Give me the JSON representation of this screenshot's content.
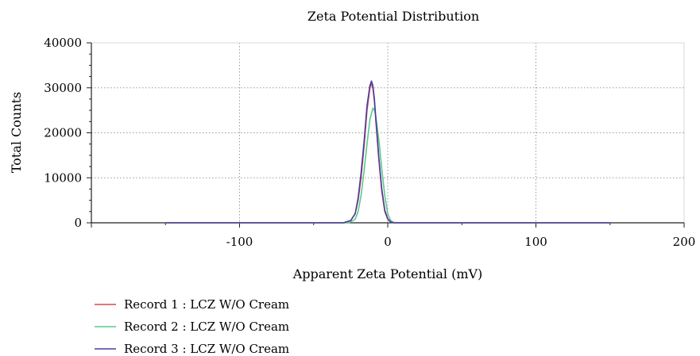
{
  "chart_data": {
    "type": "line",
    "title": "Zeta Potential Distribution",
    "xlabel": "Apparent Zeta Potential (mV)",
    "ylabel": "Total Counts",
    "xlim": [
      -200,
      200
    ],
    "ylim": [
      0,
      40000
    ],
    "xticks": [
      -100,
      0,
      100,
      200
    ],
    "xtick_labels": [
      "-100",
      "0",
      "100",
      "200"
    ],
    "yticks": [
      0,
      10000,
      20000,
      30000,
      40000
    ],
    "ytick_labels": [
      "0",
      "10000",
      "20000",
      "30000",
      "40000"
    ],
    "grid": true,
    "legend_position": "bottom-left",
    "series": [
      {
        "name": "Record 1 : LCZ W/O Cream",
        "color": "#d94a4a",
        "x": [
          -150,
          -30,
          -25,
          -22,
          -20,
          -18,
          -16,
          -14,
          -12,
          -11,
          -10,
          -9,
          -8,
          -6,
          -4,
          -2,
          0,
          2,
          4,
          150
        ],
        "y": [
          0,
          0,
          500,
          2000,
          5000,
          10000,
          17000,
          25000,
          30000,
          31000,
          30000,
          27000,
          22500,
          14000,
          7000,
          2500,
          800,
          200,
          0,
          0
        ]
      },
      {
        "name": "Record 2 : LCZ W/O Cream",
        "color": "#5cc98e",
        "x": [
          -150,
          -26,
          -22,
          -20,
          -18,
          -16,
          -14,
          -12,
          -10,
          -9,
          -8,
          -6,
          -4,
          -2,
          0,
          2,
          4,
          6,
          150
        ],
        "y": [
          0,
          0,
          800,
          2500,
          6000,
          11500,
          17500,
          23000,
          25500,
          25000,
          23500,
          18500,
          12000,
          6000,
          2000,
          500,
          100,
          0,
          0
        ]
      },
      {
        "name": "Record 3 : LCZ W/O Cream",
        "color": "#4a3f9e",
        "x": [
          -150,
          -30,
          -25,
          -22,
          -20,
          -18,
          -16,
          -14,
          -12,
          -11,
          -10,
          -9,
          -8,
          -6,
          -4,
          -2,
          0,
          2,
          4,
          150
        ],
        "y": [
          0,
          0,
          500,
          2000,
          5500,
          11000,
          18000,
          26000,
          30500,
          31500,
          30500,
          27500,
          23000,
          14500,
          7500,
          2800,
          900,
          200,
          0,
          0
        ]
      }
    ]
  }
}
